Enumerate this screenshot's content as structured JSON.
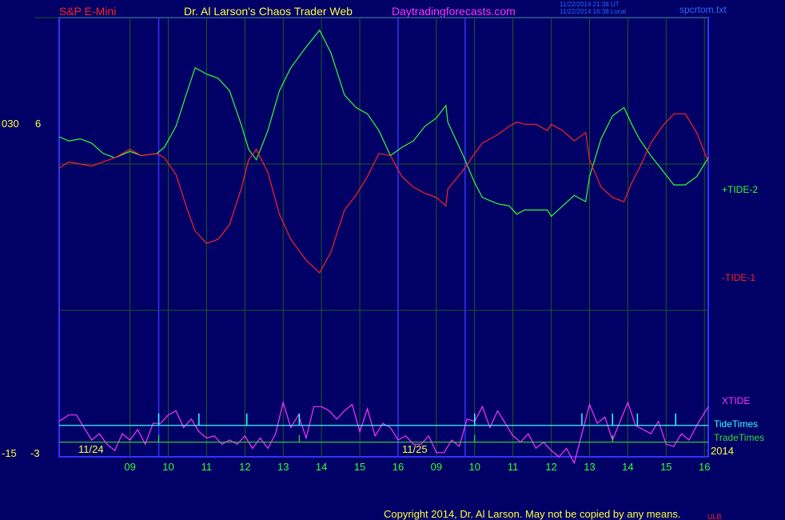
{
  "header": {
    "instrument": "S&P E-Mini",
    "title": "Dr. Al Larson's Chaos Trader Web",
    "site": "Daytradingforecasts.com",
    "timestamp_utc": "11/22/2014 21:38 UT",
    "timestamp_local": "11/22/2014 16:38 Local",
    "filename": "spcrtom.txt"
  },
  "footer": {
    "copyright": "Copyright 2014, Dr. Al Larson. May not be copied by any means.",
    "corner_label": "ULB"
  },
  "colors": {
    "background": "#000066",
    "frame": "#3333ff",
    "grid": "#1f5a1f",
    "tide_plus": "#33ff33",
    "tide_minus": "#ff2222",
    "xtide": "#ff33ff",
    "tide_times": "#33ffff",
    "trade_times": "#33dd33"
  },
  "chart_data": {
    "type": "line",
    "left_axis_labels": {
      "top_a": "030",
      "top_b": "6",
      "bottom_a": "-15",
      "bottom_b": "-3"
    },
    "date_labels": [
      "11/24",
      "11/25"
    ],
    "year_label": "2014",
    "hour_ticks": [
      {
        "label": "09",
        "x": 1.0
      },
      {
        "label": "10",
        "x": 2.0
      },
      {
        "label": "11",
        "x": 3.0
      },
      {
        "label": "12",
        "x": 4.0
      },
      {
        "label": "13",
        "x": 5.0
      },
      {
        "label": "14",
        "x": 6.0
      },
      {
        "label": "15",
        "x": 7.0
      },
      {
        "label": "16",
        "x": 8.0
      },
      {
        "label": "09",
        "x": 9.0
      },
      {
        "label": "10",
        "x": 10.0
      },
      {
        "label": "11",
        "x": 11.0
      },
      {
        "label": "12",
        "x": 12.0
      },
      {
        "label": "13",
        "x": 13.0
      },
      {
        "label": "14",
        "x": 14.0
      },
      {
        "label": "15",
        "x": 15.0
      },
      {
        "label": "16",
        "x": 16.0
      }
    ],
    "day_boundaries": [
      1.75,
      8.0,
      9.75
    ],
    "xlim": [
      -0.85,
      16.1
    ],
    "ylim": [
      -15,
      6
    ],
    "series": [
      {
        "name": "+TIDE-2",
        "color_key": "tide_plus",
        "points": [
          [
            -0.85,
            0.3
          ],
          [
            -0.6,
            0.1
          ],
          [
            -0.3,
            0.2
          ],
          [
            0,
            0
          ],
          [
            0.3,
            -0.5
          ],
          [
            0.6,
            -0.7
          ],
          [
            1.0,
            -0.4
          ],
          [
            1.3,
            -0.6
          ],
          [
            1.7,
            -0.5
          ],
          [
            1.9,
            -0.2
          ],
          [
            2.2,
            0.8
          ],
          [
            2.5,
            2.5
          ],
          [
            2.7,
            3.6
          ],
          [
            3.0,
            3.3
          ],
          [
            3.3,
            3.1
          ],
          [
            3.6,
            2.5
          ],
          [
            3.9,
            0.9
          ],
          [
            4.1,
            -0.3
          ],
          [
            4.3,
            -0.8
          ],
          [
            4.6,
            0.6
          ],
          [
            4.9,
            2.5
          ],
          [
            5.2,
            3.6
          ],
          [
            5.6,
            4.6
          ],
          [
            5.95,
            5.4
          ],
          [
            6.25,
            4.3
          ],
          [
            6.6,
            2.3
          ],
          [
            6.9,
            1.7
          ],
          [
            7.2,
            1.4
          ],
          [
            7.5,
            0.6
          ],
          [
            7.8,
            -0.6
          ],
          [
            8.1,
            -0.2
          ],
          [
            8.4,
            0.1
          ],
          [
            8.7,
            0.8
          ],
          [
            9.0,
            1.2
          ],
          [
            9.25,
            1.8
          ],
          [
            9.3,
            1.0
          ],
          [
            9.7,
            -0.6
          ],
          [
            10.0,
            -1.9
          ],
          [
            10.2,
            -2.6
          ],
          [
            10.6,
            -2.9
          ],
          [
            10.9,
            -3.0
          ],
          [
            11.1,
            -3.4
          ],
          [
            11.3,
            -3.2
          ],
          [
            11.6,
            -3.2
          ],
          [
            11.9,
            -3.2
          ],
          [
            12.0,
            -3.5
          ],
          [
            12.3,
            -3.0
          ],
          [
            12.6,
            -2.5
          ],
          [
            12.9,
            -2.8
          ],
          [
            13.0,
            -1.6
          ],
          [
            13.3,
            0.2
          ],
          [
            13.6,
            1.3
          ],
          [
            13.9,
            1.7
          ],
          [
            14.1,
            0.9
          ],
          [
            14.3,
            0.2
          ],
          [
            14.6,
            -0.6
          ],
          [
            14.9,
            -1.3
          ],
          [
            15.2,
            -2.0
          ],
          [
            15.5,
            -2.0
          ],
          [
            15.8,
            -1.6
          ],
          [
            16.1,
            -0.7
          ]
        ]
      },
      {
        "name": "-TIDE-1",
        "color_key": "tide_minus",
        "points": [
          [
            -0.85,
            -1.2
          ],
          [
            -0.6,
            -0.9
          ],
          [
            -0.3,
            -1.0
          ],
          [
            0,
            -1.1
          ],
          [
            0.3,
            -0.9
          ],
          [
            0.6,
            -0.7
          ],
          [
            1.0,
            -0.3
          ],
          [
            1.3,
            -0.6
          ],
          [
            1.7,
            -0.5
          ],
          [
            1.9,
            -0.7
          ],
          [
            2.2,
            -1.5
          ],
          [
            2.5,
            -3.2
          ],
          [
            2.7,
            -4.2
          ],
          [
            3.0,
            -4.8
          ],
          [
            3.3,
            -4.6
          ],
          [
            3.6,
            -3.9
          ],
          [
            3.9,
            -2.2
          ],
          [
            4.1,
            -0.8
          ],
          [
            4.3,
            -0.3
          ],
          [
            4.6,
            -1.4
          ],
          [
            4.9,
            -3.4
          ],
          [
            5.2,
            -4.6
          ],
          [
            5.6,
            -5.6
          ],
          [
            5.95,
            -6.2
          ],
          [
            6.25,
            -5.2
          ],
          [
            6.6,
            -3.2
          ],
          [
            6.9,
            -2.5
          ],
          [
            7.2,
            -1.6
          ],
          [
            7.5,
            -0.5
          ],
          [
            7.8,
            -0.6
          ],
          [
            8.1,
            -1.6
          ],
          [
            8.4,
            -2.1
          ],
          [
            8.7,
            -2.4
          ],
          [
            9.0,
            -2.6
          ],
          [
            9.25,
            -3.0
          ],
          [
            9.3,
            -2.2
          ],
          [
            9.7,
            -1.3
          ],
          [
            10.0,
            -0.5
          ],
          [
            10.2,
            0.0
          ],
          [
            10.6,
            0.4
          ],
          [
            10.9,
            0.8
          ],
          [
            11.1,
            1.0
          ],
          [
            11.3,
            0.9
          ],
          [
            11.6,
            0.9
          ],
          [
            11.9,
            0.6
          ],
          [
            12.0,
            0.9
          ],
          [
            12.3,
            0.6
          ],
          [
            12.6,
            0.1
          ],
          [
            12.9,
            0.5
          ],
          [
            13.0,
            -0.8
          ],
          [
            13.3,
            -2.1
          ],
          [
            13.6,
            -2.6
          ],
          [
            13.9,
            -2.8
          ],
          [
            14.1,
            -1.9
          ],
          [
            14.3,
            -1.2
          ],
          [
            14.6,
            0.0
          ],
          [
            14.9,
            0.8
          ],
          [
            15.2,
            1.4
          ],
          [
            15.5,
            1.4
          ],
          [
            15.8,
            0.5
          ],
          [
            16.1,
            -0.9
          ]
        ]
      },
      {
        "name": "XTIDE",
        "color_key": "xtide",
        "points": [
          [
            -0.85,
            -13.3
          ],
          [
            -0.6,
            -13.0
          ],
          [
            -0.4,
            -13.0
          ],
          [
            -0.2,
            -13.6
          ],
          [
            0,
            -14.2
          ],
          [
            0.2,
            -13.9
          ],
          [
            0.4,
            -14.4
          ],
          [
            0.6,
            -14.7
          ],
          [
            0.8,
            -13.9
          ],
          [
            1.0,
            -14.2
          ],
          [
            1.2,
            -13.7
          ],
          [
            1.4,
            -14.4
          ],
          [
            1.6,
            -13.4
          ],
          [
            1.8,
            -13.4
          ],
          [
            2.0,
            -13.0
          ],
          [
            2.2,
            -12.8
          ],
          [
            2.4,
            -13.6
          ],
          [
            2.6,
            -13.2
          ],
          [
            2.8,
            -13.8
          ],
          [
            3.0,
            -14.1
          ],
          [
            3.2,
            -14.0
          ],
          [
            3.4,
            -14.4
          ],
          [
            3.6,
            -14.2
          ],
          [
            3.8,
            -14.4
          ],
          [
            4.0,
            -14.0
          ],
          [
            4.2,
            -14.6
          ],
          [
            4.4,
            -14.1
          ],
          [
            4.6,
            -14.6
          ],
          [
            4.8,
            -13.9
          ],
          [
            5.0,
            -12.4
          ],
          [
            5.2,
            -13.6
          ],
          [
            5.4,
            -13.0
          ],
          [
            5.6,
            -14.1
          ],
          [
            5.8,
            -12.6
          ],
          [
            6.0,
            -12.6
          ],
          [
            6.2,
            -12.8
          ],
          [
            6.4,
            -13.2
          ],
          [
            6.6,
            -12.8
          ],
          [
            6.8,
            -12.5
          ],
          [
            7.0,
            -13.8
          ],
          [
            7.2,
            -12.7
          ],
          [
            7.4,
            -14.0
          ],
          [
            7.6,
            -13.4
          ],
          [
            7.8,
            -13.6
          ],
          [
            8.0,
            -14.2
          ],
          [
            8.2,
            -14.0
          ],
          [
            8.4,
            -14.4
          ],
          [
            8.6,
            -14.4
          ],
          [
            8.8,
            -14.0
          ],
          [
            9.0,
            -14.8
          ],
          [
            9.2,
            -14.8
          ],
          [
            9.4,
            -14.2
          ],
          [
            9.6,
            -14.5
          ],
          [
            9.8,
            -13.2
          ],
          [
            10.0,
            -13.3
          ],
          [
            10.2,
            -12.6
          ],
          [
            10.4,
            -13.6
          ],
          [
            10.6,
            -12.8
          ],
          [
            10.8,
            -13.4
          ],
          [
            11.0,
            -14.0
          ],
          [
            11.2,
            -14.3
          ],
          [
            11.4,
            -13.9
          ],
          [
            11.6,
            -14.6
          ],
          [
            11.8,
            -14.3
          ],
          [
            12.0,
            -14.7
          ],
          [
            12.2,
            -15.0
          ],
          [
            12.4,
            -14.6
          ],
          [
            12.6,
            -15.3
          ],
          [
            12.8,
            -13.9
          ],
          [
            13.0,
            -12.5
          ],
          [
            13.2,
            -13.4
          ],
          [
            13.4,
            -13.1
          ],
          [
            13.6,
            -14.2
          ],
          [
            13.8,
            -13.3
          ],
          [
            14.0,
            -12.4
          ],
          [
            14.2,
            -13.5
          ],
          [
            14.4,
            -13.7
          ],
          [
            14.6,
            -13.9
          ],
          [
            14.8,
            -13.3
          ],
          [
            15.0,
            -14.4
          ],
          [
            15.2,
            -14.5
          ],
          [
            15.4,
            -13.9
          ],
          [
            15.6,
            -14.2
          ],
          [
            15.8,
            -13.5
          ],
          [
            16.1,
            -12.6
          ]
        ]
      }
    ],
    "tide_times": {
      "name": "TideTimes",
      "level": -13.5,
      "spikes": [
        1.75,
        2.8,
        4.05,
        5.42,
        10.0,
        12.8,
        13.6,
        14.25,
        15.25
      ]
    },
    "trade_times": {
      "name": "TradeTimes",
      "level": -14.3,
      "steps": [
        1.75,
        5.42,
        10.0,
        13.6
      ]
    }
  }
}
